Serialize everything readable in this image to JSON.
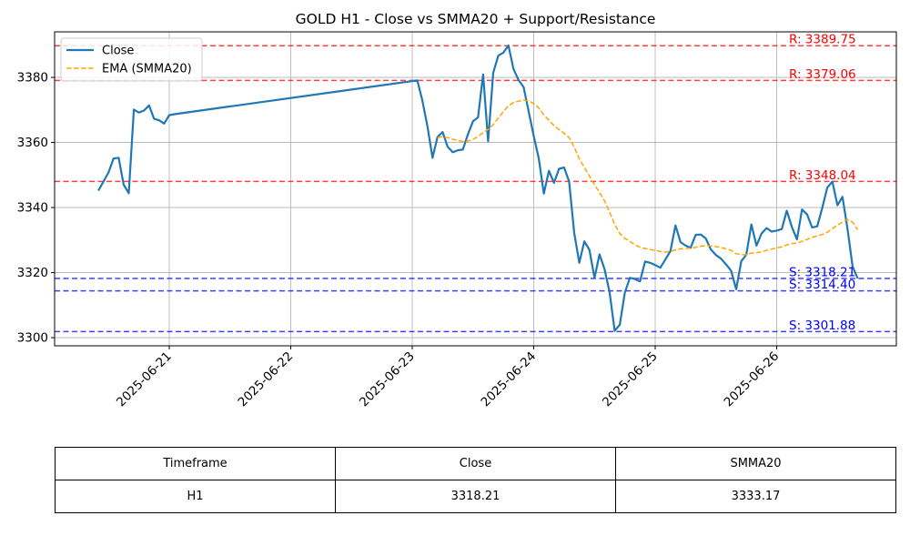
{
  "chart_data": {
    "type": "line",
    "title": "GOLD H1 - Close vs SMMA20 + Support/Resistance",
    "xlabel": "",
    "ylabel": "",
    "x_ticks": [
      "2025-06-21",
      "2025-06-22",
      "2025-06-23",
      "2025-06-24",
      "2025-06-25",
      "2025-06-26"
    ],
    "y_ticks": [
      3300,
      3320,
      3340,
      3360,
      3380
    ],
    "ylim": [
      3297.5,
      3394.0
    ],
    "grid": true,
    "legend_position": "top-left",
    "legend": [
      {
        "label": "Close",
        "color": "#1f77b4",
        "style": "solid"
      },
      {
        "label": "EMA (SMMA20)",
        "color": "#ffa500",
        "style": "dashed"
      }
    ],
    "series": [
      {
        "name": "Close",
        "color": "#1f77b4",
        "points": [
          [
            "2025-06-20T10:00",
            3345.2
          ],
          [
            "2025-06-20T11:00",
            3348.0
          ],
          [
            "2025-06-20T12:00",
            3350.8
          ],
          [
            "2025-06-20T13:00",
            3355.1
          ],
          [
            "2025-06-20T14:00",
            3355.3
          ],
          [
            "2025-06-20T15:00",
            3347.0
          ],
          [
            "2025-06-20T16:00",
            3344.4
          ],
          [
            "2025-06-20T17:00",
            3370.1
          ],
          [
            "2025-06-20T18:00",
            3369.2
          ],
          [
            "2025-06-20T19:00",
            3369.8
          ],
          [
            "2025-06-20T20:00",
            3371.4
          ],
          [
            "2025-06-20T21:00",
            3367.3
          ],
          [
            "2025-06-20T22:00",
            3366.8
          ],
          [
            "2025-06-20T23:00",
            3365.8
          ],
          [
            "2025-06-21T00:00",
            3368.4
          ],
          [
            "2025-06-21T01:00",
            3368.7
          ],
          [
            "2025-06-23T01:00",
            3379.1
          ],
          [
            "2025-06-23T02:00",
            3372.9
          ],
          [
            "2025-06-23T03:00",
            3365.0
          ],
          [
            "2025-06-23T04:00",
            3355.3
          ],
          [
            "2025-06-23T05:00",
            3361.7
          ],
          [
            "2025-06-23T06:00",
            3363.2
          ],
          [
            "2025-06-23T07:00",
            3358.7
          ],
          [
            "2025-06-23T08:00",
            3357.0
          ],
          [
            "2025-06-23T09:00",
            3357.6
          ],
          [
            "2025-06-23T10:00",
            3357.8
          ],
          [
            "2025-06-23T11:00",
            3362.5
          ],
          [
            "2025-06-23T12:00",
            3366.5
          ],
          [
            "2025-06-23T13:00",
            3367.7
          ],
          [
            "2025-06-23T14:00",
            3380.9
          ],
          [
            "2025-06-23T15:00",
            3360.4
          ],
          [
            "2025-06-23T16:00",
            3381.4
          ],
          [
            "2025-06-23T17:00",
            3386.7
          ],
          [
            "2025-06-23T18:00",
            3387.6
          ],
          [
            "2025-06-23T19:00",
            3389.8
          ],
          [
            "2025-06-23T20:00",
            3382.6
          ],
          [
            "2025-06-23T21:00",
            3379.2
          ],
          [
            "2025-06-23T22:00",
            3377.0
          ],
          [
            "2025-06-23T23:00",
            3369.6
          ],
          [
            "2025-06-24T00:00",
            3362.0
          ],
          [
            "2025-06-24T01:00",
            3355.0
          ],
          [
            "2025-06-24T02:00",
            3344.3
          ],
          [
            "2025-06-24T03:00",
            3351.3
          ],
          [
            "2025-06-24T04:00",
            3347.6
          ],
          [
            "2025-06-24T05:00",
            3351.9
          ],
          [
            "2025-06-24T06:00",
            3352.3
          ],
          [
            "2025-06-24T07:00",
            3348.0
          ],
          [
            "2025-06-24T08:00",
            3332.2
          ],
          [
            "2025-06-24T09:00",
            3323.0
          ],
          [
            "2025-06-24T10:00",
            3329.6
          ],
          [
            "2025-06-24T11:00",
            3327.0
          ],
          [
            "2025-06-24T12:00",
            3318.4
          ],
          [
            "2025-06-24T13:00",
            3325.6
          ],
          [
            "2025-06-24T14:00",
            3321.0
          ],
          [
            "2025-06-24T15:00",
            3313.9
          ],
          [
            "2025-06-24T16:00",
            3302.1
          ],
          [
            "2025-06-24T17:00",
            3304.0
          ],
          [
            "2025-06-24T18:00",
            3313.8
          ],
          [
            "2025-06-24T19:00",
            3318.4
          ],
          [
            "2025-06-24T20:00",
            3318.0
          ],
          [
            "2025-06-24T21:00",
            3317.3
          ],
          [
            "2025-06-24T22:00",
            3323.4
          ],
          [
            "2025-06-24T23:00",
            3323.0
          ],
          [
            "2025-06-25T00:00",
            3322.3
          ],
          [
            "2025-06-25T01:00",
            3321.5
          ],
          [
            "2025-06-25T02:00",
            3324.0
          ],
          [
            "2025-06-25T03:00",
            3326.6
          ],
          [
            "2025-06-25T04:00",
            3334.5
          ],
          [
            "2025-06-25T05:00",
            3329.4
          ],
          [
            "2025-06-25T06:00",
            3328.3
          ],
          [
            "2025-06-25T07:00",
            3327.6
          ],
          [
            "2025-06-25T08:00",
            3331.6
          ],
          [
            "2025-06-25T09:00",
            3331.7
          ],
          [
            "2025-06-25T10:00",
            3330.5
          ],
          [
            "2025-06-25T11:00",
            3327.1
          ],
          [
            "2025-06-25T12:00",
            3325.4
          ],
          [
            "2025-06-25T13:00",
            3324.3
          ],
          [
            "2025-06-25T14:00",
            3322.5
          ],
          [
            "2025-06-25T15:00",
            3320.6
          ],
          [
            "2025-06-25T16:00",
            3314.9
          ],
          [
            "2025-06-25T17:00",
            3323.5
          ],
          [
            "2025-06-25T18:00",
            3325.5
          ],
          [
            "2025-06-25T19:00",
            3334.8
          ],
          [
            "2025-06-25T20:00",
            3328.3
          ],
          [
            "2025-06-25T21:00",
            3332.0
          ],
          [
            "2025-06-25T22:00",
            3333.7
          ],
          [
            "2025-06-25T23:00",
            3332.6
          ],
          [
            "2025-06-26T00:00",
            3332.9
          ],
          [
            "2025-06-26T01:00",
            3333.4
          ],
          [
            "2025-06-26T02:00",
            3339.0
          ],
          [
            "2025-06-26T03:00",
            3334.0
          ],
          [
            "2025-06-26T04:00",
            3330.2
          ],
          [
            "2025-06-26T05:00",
            3339.4
          ],
          [
            "2025-06-26T06:00",
            3337.9
          ],
          [
            "2025-06-26T07:00",
            3333.9
          ],
          [
            "2025-06-26T08:00",
            3334.2
          ],
          [
            "2025-06-26T09:00",
            3339.9
          ],
          [
            "2025-06-26T10:00",
            3346.1
          ],
          [
            "2025-06-26T11:00",
            3348.0
          ],
          [
            "2025-06-26T12:00",
            3340.7
          ],
          [
            "2025-06-26T13:00",
            3343.3
          ],
          [
            "2025-06-26T14:00",
            3333.3
          ],
          [
            "2025-06-26T15:00",
            3321.9
          ],
          [
            "2025-06-26T16:00",
            3318.2
          ]
        ]
      },
      {
        "name": "EMA (SMMA20)",
        "color": "#ffa500",
        "points": [
          [
            "2025-06-23T05:00",
            3361.5
          ],
          [
            "2025-06-23T06:00",
            3361.8
          ],
          [
            "2025-06-23T07:00",
            3361.5
          ],
          [
            "2025-06-23T08:00",
            3361.0
          ],
          [
            "2025-06-23T09:00",
            3360.6
          ],
          [
            "2025-06-23T10:00",
            3360.3
          ],
          [
            "2025-06-23T11:00",
            3360.4
          ],
          [
            "2025-06-23T12:00",
            3361.0
          ],
          [
            "2025-06-23T13:00",
            3361.8
          ],
          [
            "2025-06-23T14:00",
            3363.0
          ],
          [
            "2025-06-23T15:00",
            3364.0
          ],
          [
            "2025-06-23T16:00",
            3365.5
          ],
          [
            "2025-06-23T17:00",
            3367.5
          ],
          [
            "2025-06-23T18:00",
            3369.5
          ],
          [
            "2025-06-23T19:00",
            3371.3
          ],
          [
            "2025-06-23T20:00",
            3372.3
          ],
          [
            "2025-06-23T21:00",
            3372.7
          ],
          [
            "2025-06-23T22:00",
            3373.0
          ],
          [
            "2025-06-23T23:00",
            3372.8
          ],
          [
            "2025-06-24T00:00",
            3372.0
          ],
          [
            "2025-06-24T01:00",
            3370.6
          ],
          [
            "2025-06-24T02:00",
            3368.5
          ],
          [
            "2025-06-24T03:00",
            3366.8
          ],
          [
            "2025-06-24T04:00",
            3365.2
          ],
          [
            "2025-06-24T05:00",
            3364.0
          ],
          [
            "2025-06-24T06:00",
            3362.8
          ],
          [
            "2025-06-24T07:00",
            3361.5
          ],
          [
            "2025-06-24T08:00",
            3358.6
          ],
          [
            "2025-06-24T09:00",
            3355.0
          ],
          [
            "2025-06-24T10:00",
            3352.3
          ],
          [
            "2025-06-24T11:00",
            3349.7
          ],
          [
            "2025-06-24T12:00",
            3347.0
          ],
          [
            "2025-06-24T13:00",
            3344.6
          ],
          [
            "2025-06-24T14:00",
            3342.0
          ],
          [
            "2025-06-24T15:00",
            3338.6
          ],
          [
            "2025-06-24T16:00",
            3334.8
          ],
          [
            "2025-06-24T17:00",
            3332.0
          ],
          [
            "2025-06-24T18:00",
            3330.5
          ],
          [
            "2025-06-24T19:00",
            3329.6
          ],
          [
            "2025-06-24T20:00",
            3328.5
          ],
          [
            "2025-06-24T21:00",
            3327.8
          ],
          [
            "2025-06-24T22:00",
            3327.4
          ],
          [
            "2025-06-24T23:00",
            3327.1
          ],
          [
            "2025-06-25T00:00",
            3326.8
          ],
          [
            "2025-06-25T01:00",
            3326.5
          ],
          [
            "2025-06-25T02:00",
            3326.3
          ],
          [
            "2025-06-25T03:00",
            3326.5
          ],
          [
            "2025-06-25T04:00",
            3327.0
          ],
          [
            "2025-06-25T05:00",
            3327.3
          ],
          [
            "2025-06-25T06:00",
            3327.4
          ],
          [
            "2025-06-25T07:00",
            3327.5
          ],
          [
            "2025-06-25T08:00",
            3327.8
          ],
          [
            "2025-06-25T09:00",
            3328.1
          ],
          [
            "2025-06-25T10:00",
            3328.3
          ],
          [
            "2025-06-25T11:00",
            3328.2
          ],
          [
            "2025-06-25T12:00",
            3328.0
          ],
          [
            "2025-06-25T13:00",
            3327.7
          ],
          [
            "2025-06-25T14:00",
            3327.3
          ],
          [
            "2025-06-25T15:00",
            3326.8
          ],
          [
            "2025-06-25T16:00",
            3325.8
          ],
          [
            "2025-06-25T17:00",
            3325.5
          ],
          [
            "2025-06-25T18:00",
            3325.5
          ],
          [
            "2025-06-25T19:00",
            3326.0
          ],
          [
            "2025-06-25T20:00",
            3326.1
          ],
          [
            "2025-06-25T21:00",
            3326.4
          ],
          [
            "2025-06-25T22:00",
            3326.8
          ],
          [
            "2025-06-25T23:00",
            3327.2
          ],
          [
            "2025-06-26T00:00",
            3327.6
          ],
          [
            "2025-06-26T01:00",
            3327.9
          ],
          [
            "2025-06-26T02:00",
            3328.5
          ],
          [
            "2025-06-26T03:00",
            3328.9
          ],
          [
            "2025-06-26T04:00",
            3329.1
          ],
          [
            "2025-06-26T05:00",
            3329.6
          ],
          [
            "2025-06-26T06:00",
            3330.2
          ],
          [
            "2025-06-26T07:00",
            3330.8
          ],
          [
            "2025-06-26T08:00",
            3331.3
          ],
          [
            "2025-06-26T09:00",
            3331.7
          ],
          [
            "2025-06-26T10:00",
            3332.4
          ],
          [
            "2025-06-26T11:00",
            3333.5
          ],
          [
            "2025-06-26T12:00",
            3334.6
          ],
          [
            "2025-06-26T13:00",
            3335.5
          ],
          [
            "2025-06-26T14:00",
            3336.3
          ],
          [
            "2025-06-26T15:00",
            3335.5
          ],
          [
            "2025-06-26T16:00",
            3333.2
          ]
        ]
      }
    ],
    "levels": [
      {
        "kind": "resistance",
        "value": 3389.75,
        "label": "R: 3389.75",
        "color": "#ff0000"
      },
      {
        "kind": "resistance",
        "value": 3379.06,
        "label": "R: 3379.06",
        "color": "#ff0000"
      },
      {
        "kind": "resistance",
        "value": 3348.04,
        "label": "R: 3348.04",
        "color": "#ff0000"
      },
      {
        "kind": "support",
        "value": 3318.21,
        "label": "S: 3318.21",
        "color": "#0000ff"
      },
      {
        "kind": "support",
        "value": 3314.4,
        "label": "S: 3314.40",
        "color": "#0000ff"
      },
      {
        "kind": "support",
        "value": 3301.88,
        "label": "S: 3301.88",
        "color": "#0000ff"
      }
    ]
  },
  "table": {
    "headers": [
      "Timeframe",
      "Close",
      "SMMA20"
    ],
    "rows": [
      [
        "H1",
        "3318.21",
        "3333.17"
      ]
    ]
  }
}
